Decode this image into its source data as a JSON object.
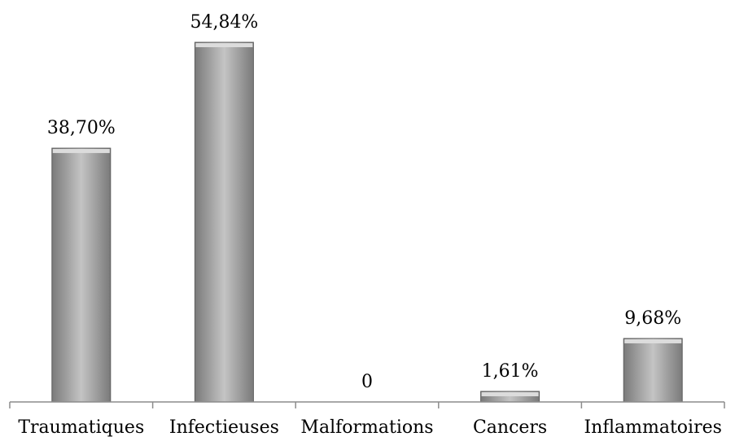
{
  "chart_data": {
    "type": "bar",
    "title": "",
    "xlabel": "",
    "ylabel": "",
    "categories": [
      "Traumatiques",
      "Infectieuses",
      "Malformations",
      "Cancers",
      "Inflammatoires"
    ],
    "values": [
      38.7,
      54.84,
      0,
      1.61,
      9.68
    ],
    "data_labels": [
      "38,70%",
      "54,84%",
      "0",
      "1,61%",
      "9,68%"
    ],
    "ylim": [
      0,
      54.84
    ],
    "grid": false,
    "legend": "none",
    "colors": {
      "bar_fill_light": "#c4c4c4",
      "bar_fill_dark": "#7a7a7a",
      "bar_stroke": "#5e5e5e",
      "axis": "#8c8c8c"
    }
  }
}
